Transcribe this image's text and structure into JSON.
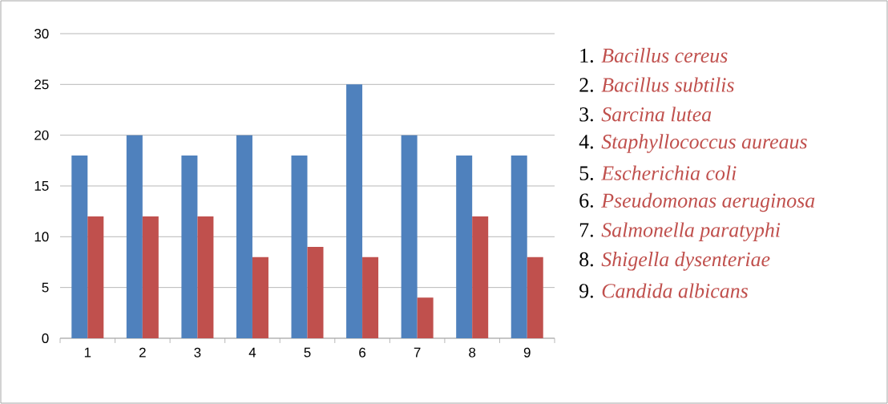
{
  "chart_data": {
    "type": "bar",
    "categories": [
      "1",
      "2",
      "3",
      "4",
      "5",
      "6",
      "7",
      "8",
      "9"
    ],
    "series": [
      {
        "color": "#4f81bd",
        "values": [
          18,
          20,
          18,
          20,
          18,
          25,
          20,
          18,
          18
        ]
      },
      {
        "color": "#c0504d",
        "values": [
          12,
          12,
          12,
          8,
          9,
          8,
          4,
          12,
          8
        ]
      }
    ],
    "ylim": [
      0,
      30
    ],
    "yticks": [
      0,
      5,
      10,
      15,
      20,
      25,
      30
    ],
    "grid": "y",
    "annotations": [
      "1. *Bacillus cereus*",
      "2. *Bacillus subtilis*",
      "3. *Sarcina lutea*",
      "4. *Staphyllococcus aureaus*",
      "5. *Escherichia coli*",
      "6. *Pseudomonas aeruginosa*",
      "7. *Salmonella paratyphi*",
      "8. *Shigella dysenteriae*",
      "9. *Candida albicans*"
    ]
  }
}
